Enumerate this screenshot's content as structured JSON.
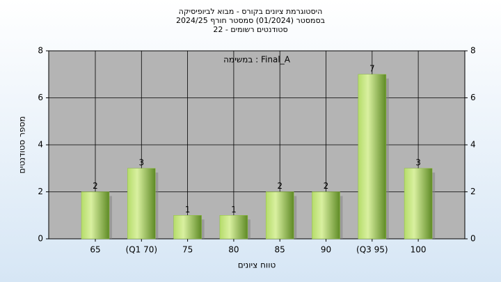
{
  "chart_data": {
    "type": "bar",
    "title": [
      "היסטוגרמת ציונים בקורס - מבוא לביופיסיקה",
      "בסמסטר  (01/2024)  סמסטר חורף 2024/25",
      "סטודנטים רשומים - 22"
    ],
    "annotation": "במשימה : Final_A",
    "x_label": "טווח ציונים",
    "y_label": "מספר סטודנטים",
    "categories": [
      "65",
      "(Q1 70)",
      "75",
      "80",
      "85",
      "90",
      "(Q3 95)",
      "100"
    ],
    "values": [
      2,
      3,
      1,
      1,
      2,
      2,
      7,
      3
    ],
    "color": "#8fbf3f",
    "ylim": [
      0,
      8
    ],
    "yticks": [
      0,
      2,
      4,
      6,
      8
    ],
    "y2lim": [
      0,
      8
    ],
    "y2ticks": [
      0,
      2,
      4,
      6,
      8
    ],
    "grid": true
  }
}
